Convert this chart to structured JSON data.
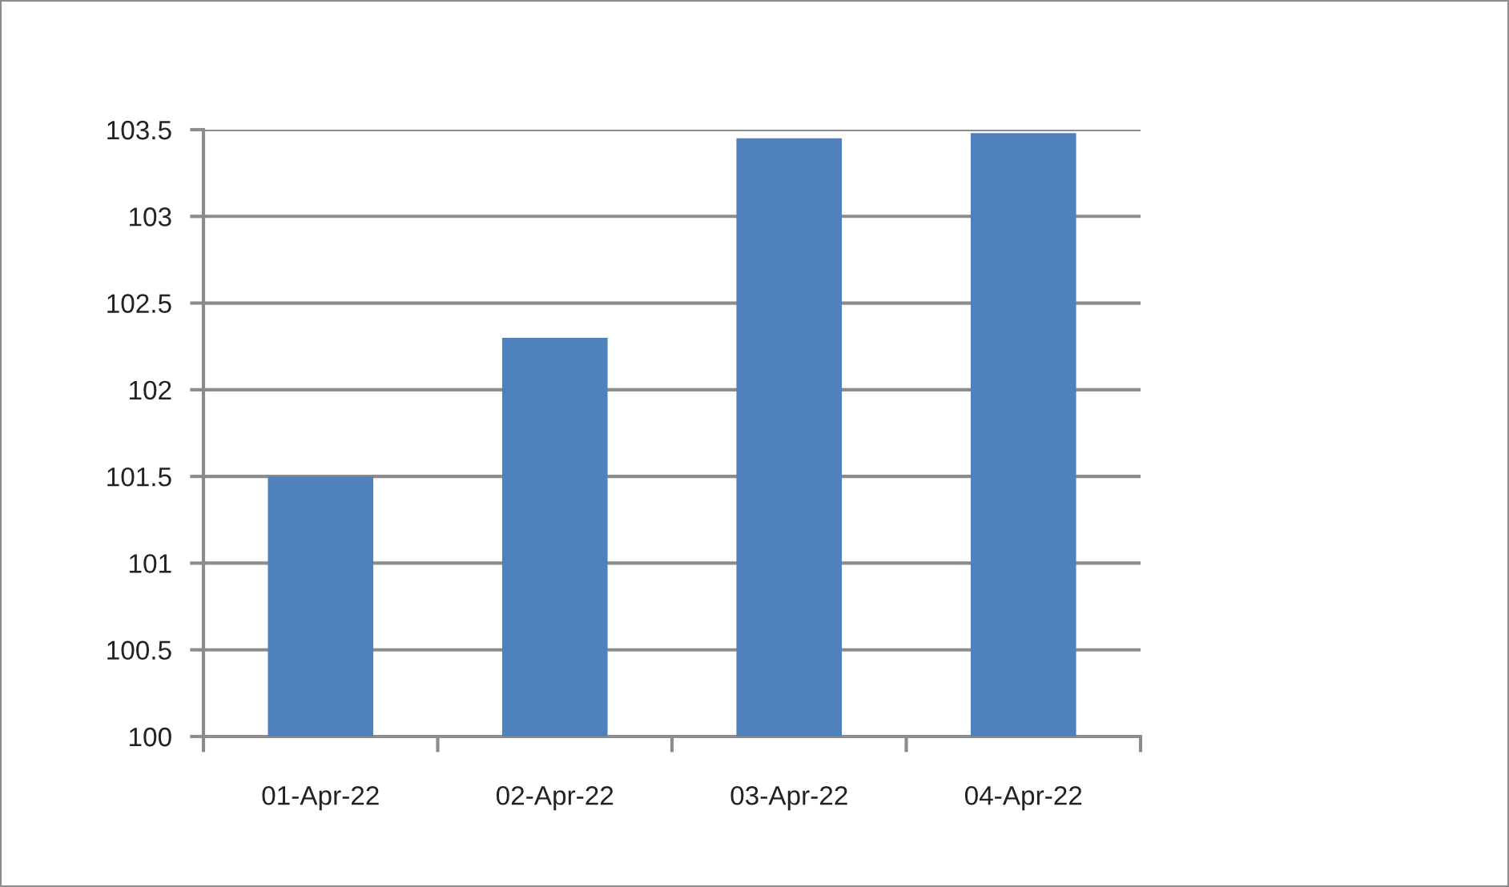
{
  "chart_data": {
    "type": "bar",
    "categories": [
      "01-Apr-22",
      "02-Apr-22",
      "03-Apr-22",
      "04-Apr-22"
    ],
    "values": [
      101.5,
      102.3,
      103.45,
      103.48
    ],
    "color": "#4f81bd",
    "ylim": [
      100,
      103.5
    ],
    "yticks": [
      100,
      100.5,
      101,
      101.5,
      102,
      102.5,
      103,
      103.5
    ],
    "grid": "y"
  }
}
